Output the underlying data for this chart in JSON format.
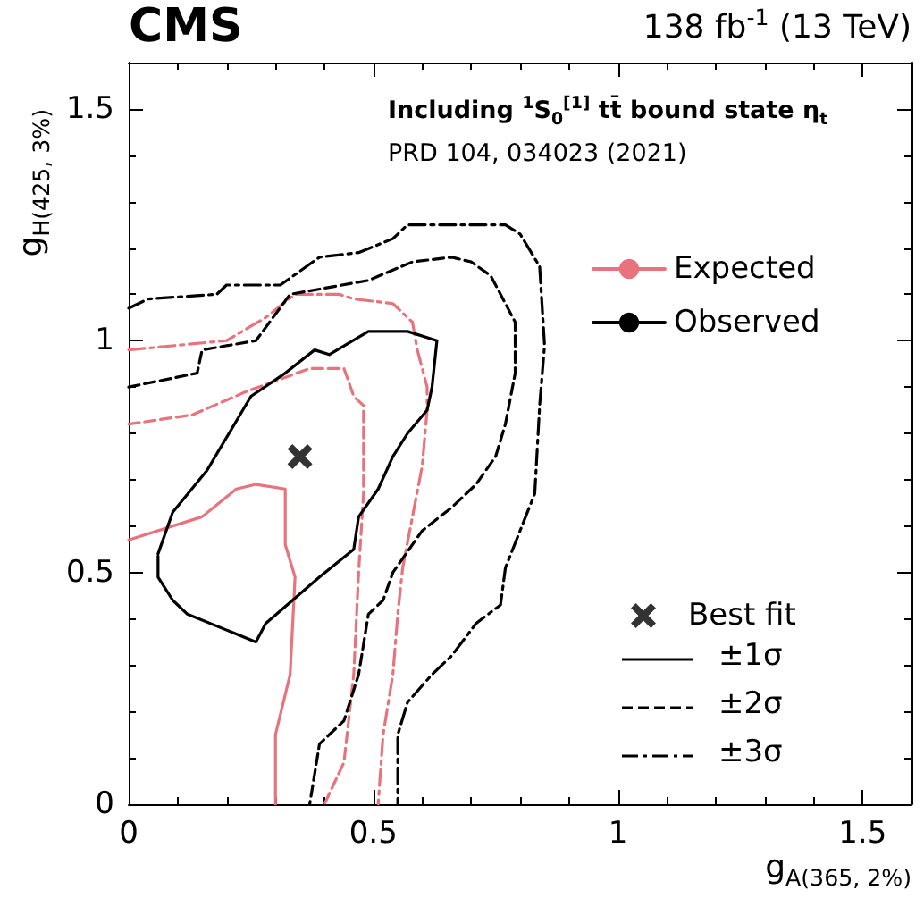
{
  "chart_data": {
    "type": "line",
    "title": "CMS",
    "subtitle": "138 fb$^{-1}$ (13 TeV)",
    "xlabel": "g$_{A(365, 2%)}$",
    "ylabel": "g$_{H(425, 3%)}$",
    "annotations": [
      "Including $^{1}$S$_{0}$$^{[1]}$ tt̄ bound state η$_{t}$",
      "PRD 104, 034023 (2021)",
      "±1σ",
      "±2σ",
      "±3σ"
    ],
    "series": [
      {
        "name": "Expected",
        "color": "#e8737c",
        "line_style": "solid",
        "x": [
          0,
          0.15,
          0.22,
          0.26,
          0.32,
          0.32,
          0.34,
          0.33,
          0.3,
          0.3
        ],
        "values": [
          0.57,
          0.62,
          0.68,
          0.69,
          0.68,
          0.56,
          0.49,
          0.28,
          0.15,
          0
        ]
      },
      {
        "color": "#e8737c",
        "line_style": "dashed",
        "x": [
          0,
          0.13,
          0.24,
          0.37,
          0.44,
          0.46,
          0.48,
          0.48,
          0.47,
          0.46,
          0.44,
          0.4
        ],
        "values": [
          0.82,
          0.84,
          0.89,
          0.94,
          0.94,
          0.88,
          0.86,
          0.67,
          0.5,
          0.28,
          0.09,
          0
        ]
      },
      {
        "color": "#e8737c",
        "line_style": "dashdot",
        "x": [
          0,
          0.2,
          0.28,
          0.34,
          0.43,
          0.46,
          0.54,
          0.58,
          0.59,
          0.61,
          0.61,
          0.6,
          0.58,
          0.56,
          0.55,
          0.54,
          0.52,
          0.51
        ],
        "values": [
          0.98,
          1.0,
          1.05,
          1.1,
          1.1,
          1.09,
          1.08,
          1.04,
          0.98,
          0.9,
          0.85,
          0.73,
          0.62,
          0.51,
          0.41,
          0.28,
          0.15,
          0
        ]
      },
      {
        "name": "Observed",
        "color": "#000000",
        "line_style": "solid",
        "x": [
          0.06,
          0.09,
          0.16,
          0.25,
          0.32,
          0.38,
          0.41,
          0.49,
          0.57,
          0.63,
          0.62,
          0.61,
          0.57,
          0.54,
          0.51,
          0.47,
          0.46,
          0.39,
          0.28,
          0.26,
          0.12,
          0.09,
          0.06,
          0.06
        ],
        "values": [
          0.54,
          0.63,
          0.72,
          0.88,
          0.93,
          0.98,
          0.97,
          1.02,
          1.02,
          1.0,
          0.9,
          0.85,
          0.8,
          0.75,
          0.68,
          0.62,
          0.55,
          0.49,
          0.39,
          0.35,
          0.41,
          0.44,
          0.49,
          0.535
        ]
      },
      {
        "color": "#000000",
        "line_style": "dashed",
        "x": [
          0,
          0.14,
          0.15,
          0.26,
          0.33,
          0.49,
          0.58,
          0.66,
          0.7,
          0.74,
          0.79,
          0.79,
          0.77,
          0.75,
          0.71,
          0.66,
          0.6,
          0.56,
          0.54,
          0.52,
          0.49,
          0.47,
          0.44,
          0.39,
          0.37
        ],
        "values": [
          0.9,
          0.93,
          0.98,
          1.0,
          1.1,
          1.13,
          1.17,
          1.18,
          1.17,
          1.14,
          1.04,
          0.93,
          0.82,
          0.75,
          0.69,
          0.64,
          0.59,
          0.53,
          0.5,
          0.44,
          0.41,
          0.28,
          0.18,
          0.13,
          0
        ]
      },
      {
        "color": "#000000",
        "line_style": "dashdot",
        "x": [
          0,
          0.04,
          0.18,
          0.2,
          0.31,
          0.39,
          0.47,
          0.54,
          0.57,
          0.77,
          0.8,
          0.84,
          0.85,
          0.84,
          0.83,
          0.8,
          0.77,
          0.76,
          0.71,
          0.66,
          0.62,
          0.57,
          0.55,
          0.55
        ],
        "values": [
          1.07,
          1.09,
          1.1,
          1.12,
          1.12,
          1.18,
          1.19,
          1.22,
          1.25,
          1.25,
          1.23,
          1.16,
          0.99,
          0.86,
          0.67,
          0.59,
          0.51,
          0.43,
          0.39,
          0.32,
          0.28,
          0.22,
          0.15,
          0
        ]
      },
      {
        "name": "Best fit",
        "type": "scatter",
        "color": "#000000",
        "marker": "cross",
        "x": [
          0.35
        ],
        "values": [
          0.75
        ]
      }
    ],
    "xlim": [
      0,
      1.6
    ],
    "ylim": [
      0,
      1.6
    ],
    "xticks": [
      0,
      0.5,
      1,
      1.5
    ],
    "yticks": [
      0,
      0.5,
      1,
      1.5
    ],
    "grid": false,
    "legend": "right"
  }
}
